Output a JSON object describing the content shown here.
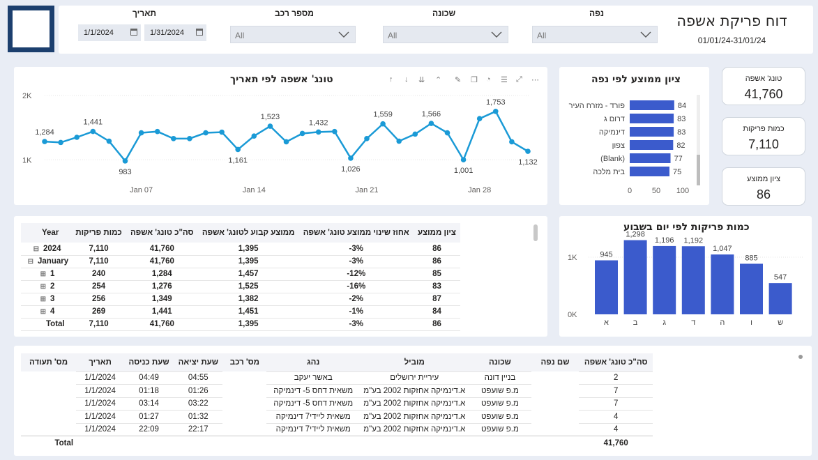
{
  "title": "דוח פריקת אשפה",
  "date_range": "01/01/24-31/01/24",
  "filters": {
    "date_label": "תאריך",
    "date_from": "1/1/2024",
    "date_to": "1/31/2024",
    "vehicle_label": "מספר רכב",
    "vehicle_value": "All",
    "neighborhood_label": "שכונה",
    "neighborhood_value": "All",
    "district_label": "נפה",
    "district_value": "All"
  },
  "kpis": [
    {
      "label": "טונג' אשפה",
      "value": "41,760"
    },
    {
      "label": "כמות פריקות",
      "value": "7,110"
    },
    {
      "label": "ציון ממוצע",
      "value": "86"
    }
  ],
  "line_chart": {
    "title": "טונג' אשפה לפי תאריך",
    "y_ticks": [
      "2K",
      "1K"
    ],
    "x_ticks": [
      "Jan 07",
      "Jan 14",
      "Jan 21",
      "Jan 28"
    ]
  },
  "district_chart": {
    "title": "ציון ממוצע לפי נפה",
    "x_ticks": [
      "0",
      "50",
      "100"
    ]
  },
  "weekday_chart": {
    "title": "כמות פריקות לפי יום בשבוע",
    "y_ticks": [
      "1K",
      "0K"
    ]
  },
  "chart_data": [
    {
      "type": "line",
      "title": "טונג' אשפה לפי תאריך",
      "x": [
        "2024-01-01",
        "2024-01-02",
        "2024-01-03",
        "2024-01-04",
        "2024-01-05",
        "2024-01-06",
        "2024-01-07",
        "2024-01-08",
        "2024-01-09",
        "2024-01-10",
        "2024-01-11",
        "2024-01-12",
        "2024-01-13",
        "2024-01-14",
        "2024-01-15",
        "2024-01-16",
        "2024-01-17",
        "2024-01-18",
        "2024-01-19",
        "2024-01-20",
        "2024-01-21",
        "2024-01-22",
        "2024-01-23",
        "2024-01-24",
        "2024-01-25",
        "2024-01-26",
        "2024-01-27",
        "2024-01-28",
        "2024-01-29",
        "2024-01-30",
        "2024-01-31"
      ],
      "values": [
        1284,
        1270,
        1350,
        1441,
        1290,
        983,
        1420,
        1440,
        1330,
        1330,
        1420,
        1430,
        1161,
        1370,
        1523,
        1280,
        1410,
        1432,
        1440,
        1026,
        1330,
        1559,
        1290,
        1400,
        1566,
        1420,
        1001,
        1640,
        1753,
        1280,
        1132
      ],
      "labels": {
        "0": "1,284",
        "3": "1,441",
        "5": "983",
        "12": "1,161",
        "14": "1,523",
        "17": "1,432",
        "19": "1,026",
        "21": "1,559",
        "24": "1,566",
        "26": "1,001",
        "28": "1,753",
        "30": "1,132"
      },
      "ylim": [
        700,
        2000
      ]
    },
    {
      "type": "bar",
      "title": "ציון ממוצע לפי נפה",
      "orientation": "horizontal",
      "categories": [
        "פורד - מזרח העיר",
        "דרום ג",
        "דינמיקה",
        "צפון",
        "(Blank)",
        "בית מלכה"
      ],
      "values": [
        84,
        83,
        83,
        82,
        77,
        75
      ],
      "xlim": [
        0,
        100
      ]
    },
    {
      "type": "bar",
      "title": "כמות פריקות לפי יום בשבוע",
      "categories": [
        "א",
        "ב",
        "ג",
        "ד",
        "ה",
        "ו",
        "ש"
      ],
      "values": [
        945,
        1298,
        1196,
        1192,
        1047,
        885,
        547
      ],
      "labels": [
        "945",
        "1,298",
        "1,196",
        "1,192",
        "1,047",
        "885",
        "547"
      ],
      "ylim": [
        0,
        1400
      ]
    }
  ],
  "matrix": {
    "headers": [
      "Year",
      "כמות פריקות",
      "סה\"כ טונג' אשפה",
      "ממוצע קבוע לטונג' אשפה",
      "אחוז שינוי ממוצע טונג' אשפה",
      "ציון ממוצע"
    ],
    "rows": [
      [
        "2024",
        "7,110",
        "41,760",
        "1,395",
        "-3%",
        "86"
      ],
      [
        "January",
        "7,110",
        "41,760",
        "1,395",
        "-3%",
        "86"
      ],
      [
        "1",
        "240",
        "1,284",
        "1,457",
        "-12%",
        "85"
      ],
      [
        "2",
        "254",
        "1,276",
        "1,525",
        "-16%",
        "83"
      ],
      [
        "3",
        "256",
        "1,349",
        "1,382",
        "-2%",
        "87"
      ],
      [
        "4",
        "269",
        "1,441",
        "1,451",
        "-1%",
        "84"
      ]
    ],
    "total": [
      "Total",
      "7,110",
      "41,760",
      "1,395",
      "-3%",
      "86"
    ]
  },
  "details": {
    "headers": [
      "מס' תעודה",
      "תאריך",
      "שעת כניסה",
      "שעת יציאה",
      "מס' רכב",
      "נהג",
      "מוביל",
      "שכונה",
      "שם נפה",
      "סה\"כ טונג' אשפה"
    ],
    "rows": [
      [
        "1/1/2024",
        "04:49",
        "04:55",
        "באשר יעקב",
        "עיריית ירושלים",
        "בניין דונה",
        "2"
      ],
      [
        "1/1/2024",
        "01:18",
        "01:26",
        "משאית דחס 5- דינמיקה",
        "א.דינמיקה אחזקות 2002 בע\"מ",
        "מ.פ שועפט",
        "7"
      ],
      [
        "1/1/2024",
        "03:14",
        "03:22",
        "משאית דחס 5- דינמיקה",
        "א.דינמיקה אחזקות 2002 בע\"מ",
        "מ.פ שועפט",
        "7"
      ],
      [
        "1/1/2024",
        "01:27",
        "01:32",
        "משאית ליידי7 דינמיקה",
        "א.דינמיקה אחזקות 2002 בע\"מ",
        "מ.פ שועפט",
        "4"
      ],
      [
        "1/1/2024",
        "22:09",
        "22:17",
        "משאית ליידי7 דינמיקה",
        "א.דינמיקה אחזקות 2002 בע\"מ",
        "מ.פ שועפט",
        "4"
      ]
    ],
    "total_label": "Total",
    "total_value": "41,760"
  },
  "colors": {
    "accent": "#3b5bcc",
    "line": "#1a9ad6",
    "logo_border": "#1c3f6e"
  }
}
